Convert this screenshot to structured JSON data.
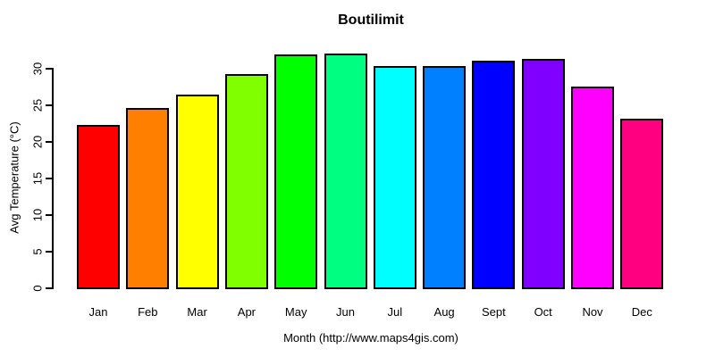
{
  "title": "Boutilimit",
  "chart_data": {
    "type": "bar",
    "title": "Boutilimit",
    "xlabel": "Month (http://www.maps4gis.com)",
    "ylabel": "Avg Temperature (°C)",
    "categories": [
      "Jan",
      "Feb",
      "Mar",
      "Apr",
      "May",
      "Jun",
      "Jul",
      "Aug",
      "Sept",
      "Oct",
      "Nov",
      "Dec"
    ],
    "values": [
      22.2,
      24.5,
      26.4,
      29.1,
      31.8,
      32.0,
      30.2,
      30.2,
      31.0,
      31.2,
      27.4,
      23.1
    ],
    "bar_colors": [
      "#FF0000",
      "#FF8000",
      "#FFFF00",
      "#80FF00",
      "#00FF00",
      "#00FF80",
      "#00FFFF",
      "#0080FF",
      "#0000FF",
      "#8000FF",
      "#FF00FF",
      "#FF0080"
    ],
    "yticks": [
      0,
      5,
      10,
      15,
      20,
      25,
      30
    ],
    "ylim": [
      0,
      32.5
    ],
    "grid": false,
    "legend": false,
    "bar_border_color": "#000000",
    "axis_color": "#000000",
    "text_color": "#000000",
    "background_color": "#FFFFFF"
  }
}
